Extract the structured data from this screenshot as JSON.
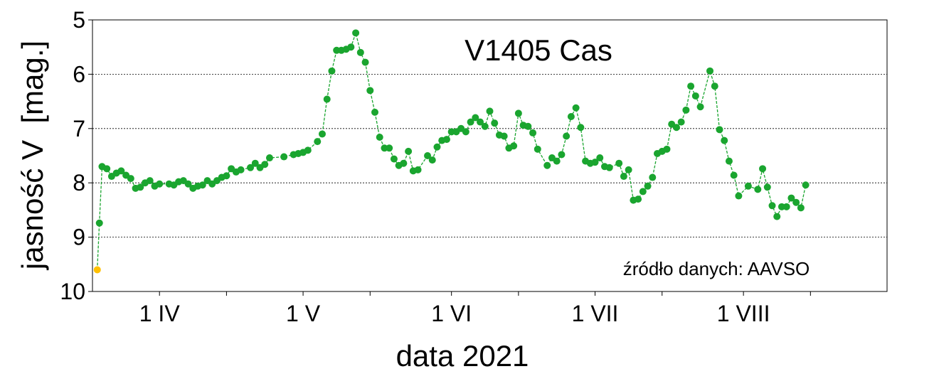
{
  "chart_data": {
    "type": "scatter",
    "title": "V1405 Cas",
    "xlabel": "data 2021",
    "ylabel": "jasność V  [mag.]",
    "annotation": "źródło danych: AAVSO",
    "y_inverted": true,
    "ylim": [
      5,
      10
    ],
    "yticks": [
      5,
      6,
      7,
      8,
      9,
      10
    ],
    "ytick_labels": [
      "5",
      "6",
      "7",
      "8",
      "9",
      "10"
    ],
    "xlim": [
      "2021-03-18",
      "2021-08-31"
    ],
    "x_tick_labels": [
      {
        "date": "2021-04-01",
        "label": "1 IV"
      },
      {
        "date": "2021-05-01",
        "label": "1 V"
      },
      {
        "date": "2021-06-01",
        "label": "1 VI"
      },
      {
        "date": "2021-07-01",
        "label": "1 VII"
      },
      {
        "date": "2021-08-01",
        "label": "1 VIII"
      }
    ],
    "x_minor_ticks": [
      "2021-04-15",
      "2021-05-15",
      "2021-06-15",
      "2021-07-15",
      "2021-08-15"
    ],
    "grid": "horizontal dotted",
    "line_style": "dashed",
    "colors": {
      "series": "#1aa52f",
      "first_point": "#ffc000",
      "grid": "#000000"
    },
    "series": [
      {
        "points": [
          [
            "2021-03-19",
            9.6
          ],
          [
            "2021-03-19",
            8.74
          ],
          [
            "2021-03-20",
            7.7
          ],
          [
            "2021-03-21",
            7.74
          ],
          [
            "2021-03-22",
            7.88
          ],
          [
            "2021-03-23",
            7.82
          ],
          [
            "2021-03-24",
            7.78
          ],
          [
            "2021-03-25",
            7.86
          ],
          [
            "2021-03-26",
            7.92
          ],
          [
            "2021-03-27",
            8.1
          ],
          [
            "2021-03-28",
            8.08
          ],
          [
            "2021-03-29",
            8.0
          ],
          [
            "2021-03-30",
            7.96
          ],
          [
            "2021-03-31",
            8.06
          ],
          [
            "2021-04-01",
            8.02
          ],
          [
            "2021-04-03",
            8.02
          ],
          [
            "2021-04-04",
            8.04
          ],
          [
            "2021-04-05",
            7.98
          ],
          [
            "2021-04-06",
            7.96
          ],
          [
            "2021-04-07",
            8.02
          ],
          [
            "2021-04-08",
            8.1
          ],
          [
            "2021-04-09",
            8.06
          ],
          [
            "2021-04-10",
            8.04
          ],
          [
            "2021-04-11",
            7.96
          ],
          [
            "2021-04-12",
            8.02
          ],
          [
            "2021-04-13",
            7.96
          ],
          [
            "2021-04-14",
            7.9
          ],
          [
            "2021-04-15",
            7.87
          ],
          [
            "2021-04-16",
            7.74
          ],
          [
            "2021-04-17",
            7.8
          ],
          [
            "2021-04-18",
            7.76
          ],
          [
            "2021-04-20",
            7.72
          ],
          [
            "2021-04-21",
            7.64
          ],
          [
            "2021-04-22",
            7.72
          ],
          [
            "2021-04-23",
            7.66
          ],
          [
            "2021-04-24",
            7.54
          ],
          [
            "2021-04-27",
            7.52
          ],
          [
            "2021-04-29",
            7.48
          ],
          [
            "2021-04-30",
            7.46
          ],
          [
            "2021-05-01",
            7.44
          ],
          [
            "2021-05-02",
            7.4
          ],
          [
            "2021-05-04",
            7.24
          ],
          [
            "2021-05-05",
            7.1
          ],
          [
            "2021-05-06",
            6.46
          ],
          [
            "2021-05-07",
            5.94
          ],
          [
            "2021-05-08",
            5.56
          ],
          [
            "2021-05-09",
            5.56
          ],
          [
            "2021-05-10",
            5.54
          ],
          [
            "2021-05-11",
            5.5
          ],
          [
            "2021-05-12",
            5.24
          ],
          [
            "2021-05-13",
            5.6
          ],
          [
            "2021-05-14",
            5.78
          ],
          [
            "2021-05-15",
            6.3
          ],
          [
            "2021-05-16",
            6.7
          ],
          [
            "2021-05-17",
            7.16
          ],
          [
            "2021-05-18",
            7.36
          ],
          [
            "2021-05-19",
            7.36
          ],
          [
            "2021-05-20",
            7.56
          ],
          [
            "2021-05-21",
            7.68
          ],
          [
            "2021-05-22",
            7.64
          ],
          [
            "2021-05-23",
            7.42
          ],
          [
            "2021-05-24",
            7.78
          ],
          [
            "2021-05-25",
            7.76
          ],
          [
            "2021-05-27",
            7.5
          ],
          [
            "2021-05-28",
            7.58
          ],
          [
            "2021-05-29",
            7.34
          ],
          [
            "2021-05-30",
            7.22
          ],
          [
            "2021-05-31",
            7.2
          ],
          [
            "2021-06-01",
            7.06
          ],
          [
            "2021-06-02",
            7.06
          ],
          [
            "2021-06-03",
            7.0
          ],
          [
            "2021-06-04",
            7.06
          ],
          [
            "2021-06-05",
            6.88
          ],
          [
            "2021-06-06",
            6.8
          ],
          [
            "2021-06-07",
            6.88
          ],
          [
            "2021-06-08",
            6.96
          ],
          [
            "2021-06-09",
            6.68
          ],
          [
            "2021-06-10",
            6.9
          ],
          [
            "2021-06-11",
            7.12
          ],
          [
            "2021-06-12",
            7.14
          ],
          [
            "2021-06-13",
            7.36
          ],
          [
            "2021-06-14",
            7.32
          ],
          [
            "2021-06-15",
            6.72
          ],
          [
            "2021-06-16",
            6.94
          ],
          [
            "2021-06-17",
            6.96
          ],
          [
            "2021-06-18",
            7.08
          ],
          [
            "2021-06-19",
            7.38
          ],
          [
            "2021-06-21",
            7.68
          ],
          [
            "2021-06-22",
            7.54
          ],
          [
            "2021-06-23",
            7.6
          ],
          [
            "2021-06-24",
            7.48
          ],
          [
            "2021-06-25",
            7.14
          ],
          [
            "2021-06-26",
            6.78
          ],
          [
            "2021-06-27",
            6.62
          ],
          [
            "2021-06-28",
            6.98
          ],
          [
            "2021-06-29",
            7.6
          ],
          [
            "2021-06-30",
            7.64
          ],
          [
            "2021-07-01",
            7.62
          ],
          [
            "2021-07-02",
            7.54
          ],
          [
            "2021-07-03",
            7.7
          ],
          [
            "2021-07-04",
            7.72
          ],
          [
            "2021-07-06",
            7.64
          ],
          [
            "2021-07-07",
            7.88
          ],
          [
            "2021-07-08",
            7.76
          ],
          [
            "2021-07-09",
            8.32
          ],
          [
            "2021-07-10",
            8.3
          ],
          [
            "2021-07-11",
            8.16
          ],
          [
            "2021-07-12",
            8.06
          ],
          [
            "2021-07-13",
            7.9
          ],
          [
            "2021-07-14",
            7.46
          ],
          [
            "2021-07-15",
            7.42
          ],
          [
            "2021-07-16",
            7.38
          ],
          [
            "2021-07-17",
            6.92
          ],
          [
            "2021-07-18",
            6.98
          ],
          [
            "2021-07-19",
            6.88
          ],
          [
            "2021-07-20",
            6.66
          ],
          [
            "2021-07-21",
            6.22
          ],
          [
            "2021-07-22",
            6.4
          ],
          [
            "2021-07-23",
            6.6
          ],
          [
            "2021-07-25",
            5.94
          ],
          [
            "2021-07-26",
            6.22
          ],
          [
            "2021-07-27",
            7.02
          ],
          [
            "2021-07-28",
            7.22
          ],
          [
            "2021-07-29",
            7.6
          ],
          [
            "2021-07-30",
            7.86
          ],
          [
            "2021-07-31",
            8.24
          ],
          [
            "2021-08-02",
            8.06
          ],
          [
            "2021-08-04",
            8.12
          ],
          [
            "2021-08-05",
            7.74
          ],
          [
            "2021-08-06",
            8.08
          ],
          [
            "2021-08-07",
            8.42
          ],
          [
            "2021-08-08",
            8.62
          ],
          [
            "2021-08-09",
            8.44
          ],
          [
            "2021-08-10",
            8.44
          ],
          [
            "2021-08-11",
            8.28
          ],
          [
            "2021-08-12",
            8.36
          ],
          [
            "2021-08-13",
            8.46
          ],
          [
            "2021-08-14",
            8.04
          ]
        ]
      }
    ]
  }
}
